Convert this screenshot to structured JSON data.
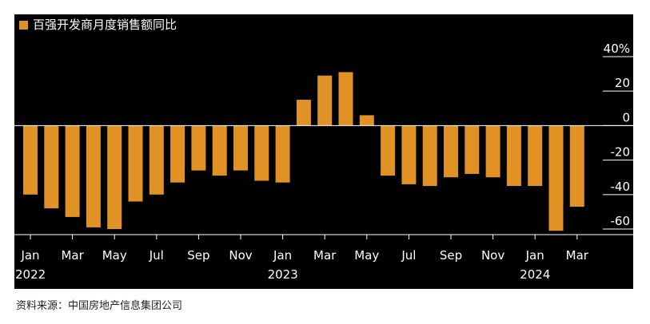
{
  "chart_data": {
    "type": "bar",
    "legend": "百强开发商月度销售额同比",
    "legend_position": "top-left",
    "title": "",
    "xlabel": "",
    "ylabel": "",
    "color": "#e09224",
    "ylim": [
      -66,
      46
    ],
    "y_ticks": [
      {
        "value": 40,
        "label": "40%"
      },
      {
        "value": 20,
        "label": "20"
      },
      {
        "value": 0,
        "label": "0"
      },
      {
        "value": -20,
        "label": "-20"
      },
      {
        "value": -40,
        "label": "-40"
      },
      {
        "value": -60,
        "label": "-60"
      }
    ],
    "grid": false,
    "categories": [
      "2022-01",
      "2022-02",
      "2022-03",
      "2022-04",
      "2022-05",
      "2022-06",
      "2022-07",
      "2022-08",
      "2022-09",
      "2022-10",
      "2022-11",
      "2022-12",
      "2023-01",
      "2023-02",
      "2023-03",
      "2023-04",
      "2023-05",
      "2023-06",
      "2023-07",
      "2023-08",
      "2023-09",
      "2023-10",
      "2023-11",
      "2023-12",
      "2024-01",
      "2024-02",
      "2024-03"
    ],
    "values": [
      -40,
      -48,
      -53,
      -59,
      -60,
      -44,
      -40,
      -33,
      -26,
      -29,
      -26,
      -32,
      -33,
      15,
      29,
      31,
      6,
      -29,
      -34,
      -35,
      -30,
      -28,
      -30,
      -35,
      -35,
      -61,
      -47
    ],
    "x_tick_labels": [
      {
        "index": 0,
        "label": "Jan",
        "year": "2022"
      },
      {
        "index": 2,
        "label": "Mar"
      },
      {
        "index": 4,
        "label": "May"
      },
      {
        "index": 6,
        "label": "Jul"
      },
      {
        "index": 8,
        "label": "Sep"
      },
      {
        "index": 10,
        "label": "Nov"
      },
      {
        "index": 12,
        "label": "Jan",
        "year": "2023"
      },
      {
        "index": 14,
        "label": "Mar"
      },
      {
        "index": 16,
        "label": "May"
      },
      {
        "index": 18,
        "label": "Jul"
      },
      {
        "index": 20,
        "label": "Sep"
      },
      {
        "index": 22,
        "label": "Nov"
      },
      {
        "index": 24,
        "label": "Jan",
        "year": "2024"
      },
      {
        "index": 26,
        "label": "Mar"
      }
    ]
  },
  "source": "资料来源：中国房地产信息集团公司"
}
